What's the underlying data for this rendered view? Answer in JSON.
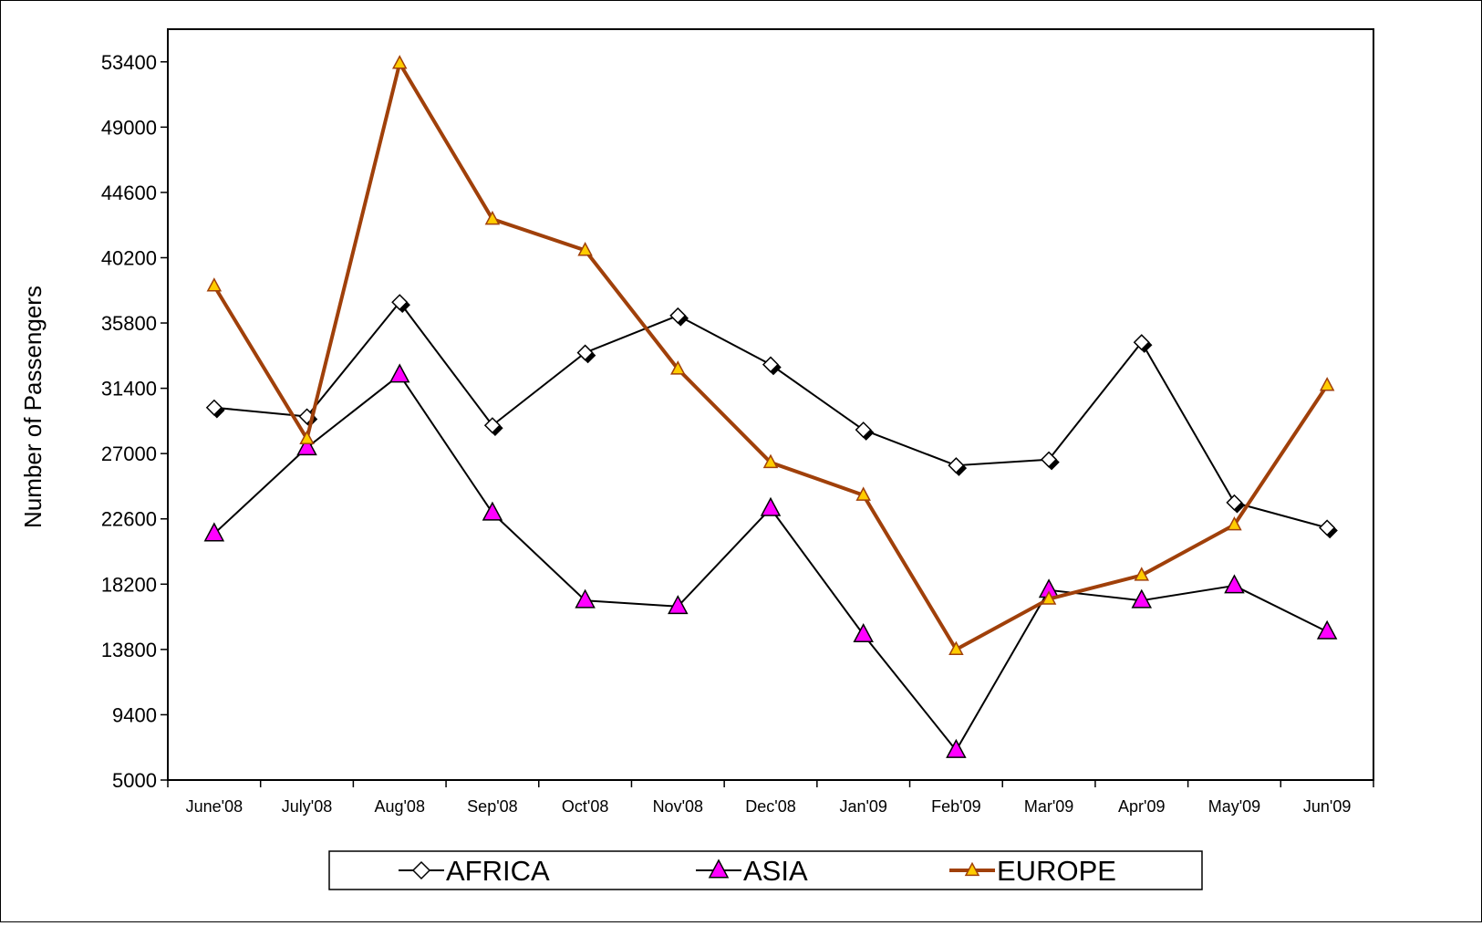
{
  "chart_data": {
    "type": "line",
    "title": "",
    "xlabel": "",
    "ylabel": "Number of Passengers",
    "categories": [
      "June'08",
      "July'08",
      "Aug'08",
      "Sep'08",
      "Oct'08",
      "Nov'08",
      "Dec'08",
      "Jan'09",
      "Feb'09",
      "Mar'09",
      "Apr'09",
      "May'09",
      "Jun'09"
    ],
    "ylim": [
      5000,
      55600
    ],
    "yticks": [
      5000,
      9400,
      13800,
      18200,
      22600,
      27000,
      31400,
      35800,
      40200,
      44600,
      49000,
      53400
    ],
    "grid": false,
    "legend_position": "bottom",
    "series": [
      {
        "name": "AFRICA",
        "color": "#000000",
        "marker": "diamond",
        "values": [
          30100,
          29500,
          37200,
          28900,
          33800,
          36300,
          33000,
          28600,
          26200,
          26600,
          34500,
          23700,
          22000
        ]
      },
      {
        "name": "ASIA",
        "color": "#000000",
        "marker_fill": "#ff00ff",
        "marker": "triangle",
        "values": [
          21600,
          27400,
          32300,
          23000,
          17100,
          16700,
          23300,
          14800,
          7000,
          17800,
          17100,
          18100,
          15000
        ]
      },
      {
        "name": "EUROPE",
        "color": "#a0400a",
        "marker_fill": "#ffcc00",
        "marker": "triangle",
        "values": [
          38300,
          28000,
          53300,
          42800,
          40700,
          32700,
          26400,
          24200,
          13800,
          17200,
          18800,
          22200,
          31600
        ]
      }
    ]
  }
}
